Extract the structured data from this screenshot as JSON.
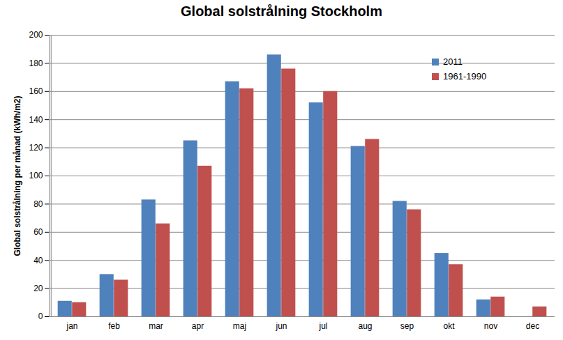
{
  "chart_data": {
    "type": "bar",
    "title": "Global solstrålning Stockholm",
    "y_label": "Global solstrålning per månad (kWh/m2)",
    "categories": [
      "jan",
      "feb",
      "mar",
      "apr",
      "maj",
      "jun",
      "jul",
      "aug",
      "sep",
      "okt",
      "nov",
      "dec"
    ],
    "series": [
      {
        "name": "2011",
        "color": "#4f81bd",
        "values": [
          11,
          30,
          83,
          125,
          167,
          186,
          152,
          121,
          82,
          45,
          12,
          null
        ]
      },
      {
        "name": "1961-1990",
        "color": "#c0504d",
        "values": [
          10,
          26,
          66,
          107,
          162,
          176,
          160,
          126,
          76,
          37,
          14,
          7
        ]
      }
    ],
    "ylim": [
      0,
      200
    ],
    "yticks": [
      0,
      20,
      40,
      60,
      80,
      100,
      120,
      140,
      160,
      180,
      200
    ],
    "grid": true,
    "legend": "top-right"
  }
}
